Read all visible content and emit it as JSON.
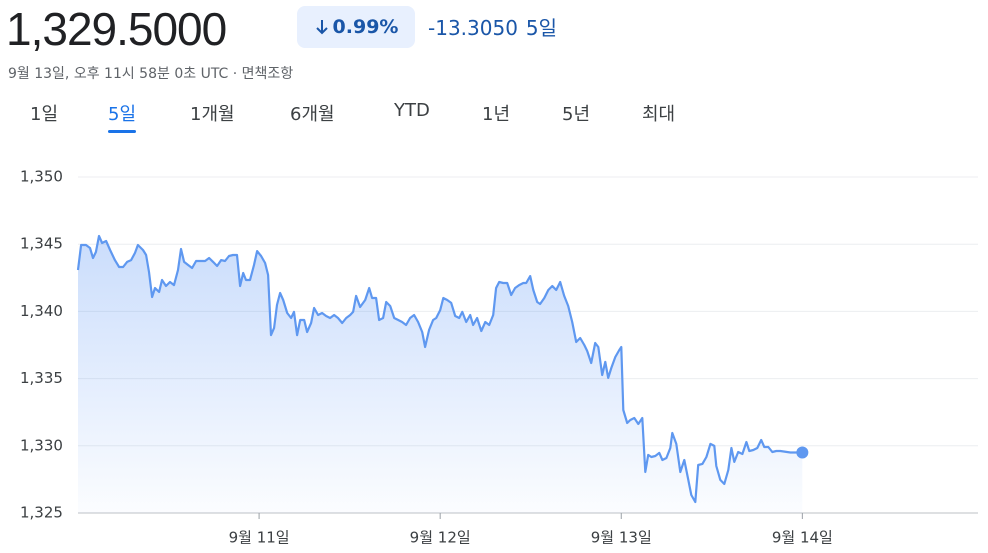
{
  "header": {
    "price": "1,329.5000",
    "change_percent": "0.99%",
    "change": "-13.3050",
    "period": "5일",
    "timestamp": "9월 13일, 오후 11시 58분 0초 UTC · 면책조항"
  },
  "tabs": [
    "1일",
    "5일",
    "1개월",
    "6개월",
    "YTD",
    "1년",
    "5년",
    "최대"
  ],
  "active_tab": 1,
  "chart_data": {
    "type": "line",
    "color": "#5f98f0",
    "grid": true,
    "xlim": [
      10,
      14.97
    ],
    "ylim": [
      1325,
      1350
    ],
    "xticks": [
      {
        "value": 11,
        "label": "9월 11일"
      },
      {
        "value": 12,
        "label": "9월 12일"
      },
      {
        "value": 13,
        "label": "9월 13일"
      },
      {
        "value": 14,
        "label": "9월 14일"
      }
    ],
    "yticks": [
      {
        "value": 1325,
        "label": "1,325"
      },
      {
        "value": 1330,
        "label": "1,330"
      },
      {
        "value": 1335,
        "label": "1,335"
      },
      {
        "value": 1340,
        "label": "1,340"
      },
      {
        "value": 1345,
        "label": "1,345"
      },
      {
        "value": 1350,
        "label": "1,350"
      }
    ],
    "x": [
      10.0,
      10.017,
      10.044,
      10.066,
      10.083,
      10.099,
      10.116,
      10.133,
      10.155,
      10.177,
      10.204,
      10.227,
      10.249,
      10.271,
      10.293,
      10.315,
      10.331,
      10.359,
      10.376,
      10.392,
      10.409,
      10.425,
      10.448,
      10.464,
      10.486,
      10.508,
      10.53,
      10.552,
      10.569,
      10.586,
      10.608,
      10.63,
      10.652,
      10.674,
      10.702,
      10.724,
      10.746,
      10.768,
      10.79,
      10.812,
      10.834,
      10.856,
      10.878,
      10.895,
      10.912,
      10.928,
      10.95,
      10.972,
      10.989,
      11.011,
      11.033,
      11.05,
      11.066,
      11.083,
      11.099,
      11.116,
      11.133,
      11.155,
      11.177,
      11.193,
      11.21,
      11.227,
      11.249,
      11.265,
      11.287,
      11.304,
      11.326,
      11.348,
      11.37,
      11.392,
      11.414,
      11.436,
      11.459,
      11.481,
      11.503,
      11.519,
      11.536,
      11.558,
      11.586,
      11.608,
      11.624,
      11.646,
      11.663,
      11.685,
      11.702,
      11.724,
      11.746,
      11.768,
      11.79,
      11.812,
      11.834,
      11.856,
      11.878,
      11.901,
      11.917,
      11.939,
      11.961,
      11.978,
      12.0,
      12.017,
      12.039,
      12.061,
      12.083,
      12.105,
      12.122,
      12.144,
      12.166,
      12.182,
      12.204,
      12.227,
      12.249,
      12.271,
      12.293,
      12.309,
      12.326,
      12.348,
      12.37,
      12.392,
      12.414,
      12.436,
      12.459,
      12.475,
      12.497,
      12.514,
      12.536,
      12.552,
      12.575,
      12.597,
      12.619,
      12.641,
      12.663,
      12.685,
      12.707,
      12.729,
      12.751,
      12.773,
      12.796,
      12.812,
      12.834,
      12.856,
      12.873,
      12.895,
      12.912,
      12.928,
      12.945,
      12.967,
      12.989,
      13.0,
      13.011,
      13.033,
      13.05,
      13.072,
      13.094,
      13.116,
      13.133,
      13.149,
      13.166,
      13.188,
      13.21,
      13.227,
      13.249,
      13.271,
      13.282,
      13.304,
      13.326,
      13.348,
      13.37,
      13.387,
      13.409,
      13.425,
      13.448,
      13.47,
      13.492,
      13.514,
      13.525,
      13.547,
      13.569,
      13.591,
      13.608,
      13.624,
      13.646,
      13.669,
      13.691,
      13.707,
      13.729,
      13.751,
      13.773,
      13.79,
      13.812,
      13.834,
      13.856,
      13.878,
      13.934,
      14.0
    ],
    "values": [
      1343.08,
      1344.94,
      1344.94,
      1344.72,
      1343.97,
      1344.42,
      1345.61,
      1345.09,
      1345.24,
      1344.57,
      1343.82,
      1343.3,
      1343.3,
      1343.68,
      1343.82,
      1344.35,
      1344.94,
      1344.57,
      1344.2,
      1342.93,
      1341.07,
      1341.74,
      1341.44,
      1342.34,
      1341.89,
      1342.19,
      1341.96,
      1343.08,
      1344.64,
      1343.68,
      1343.45,
      1343.23,
      1343.75,
      1343.75,
      1343.75,
      1343.97,
      1343.68,
      1343.38,
      1343.82,
      1343.75,
      1344.12,
      1344.2,
      1344.2,
      1341.89,
      1342.86,
      1342.34,
      1342.34,
      1343.45,
      1344.49,
      1344.12,
      1343.6,
      1342.71,
      1338.24,
      1338.77,
      1340.48,
      1341.37,
      1340.85,
      1339.88,
      1339.51,
      1339.96,
      1338.24,
      1339.36,
      1339.36,
      1338.47,
      1339.14,
      1340.25,
      1339.73,
      1339.88,
      1339.66,
      1339.51,
      1339.73,
      1339.51,
      1339.14,
      1339.51,
      1339.73,
      1339.96,
      1341.15,
      1340.33,
      1340.85,
      1341.74,
      1341.0,
      1341.0,
      1339.36,
      1339.51,
      1340.7,
      1340.4,
      1339.51,
      1339.36,
      1339.21,
      1338.99,
      1339.51,
      1339.73,
      1339.21,
      1338.47,
      1337.35,
      1338.62,
      1339.36,
      1339.51,
      1340.1,
      1341.0,
      1340.85,
      1340.63,
      1339.66,
      1339.51,
      1339.96,
      1339.21,
      1339.73,
      1338.99,
      1339.51,
      1338.54,
      1339.21,
      1338.99,
      1339.73,
      1341.74,
      1342.19,
      1342.11,
      1342.11,
      1341.22,
      1341.74,
      1341.96,
      1342.11,
      1342.11,
      1342.63,
      1341.59,
      1340.7,
      1340.55,
      1341.0,
      1341.59,
      1341.89,
      1341.59,
      1342.19,
      1341.15,
      1340.4,
      1339.21,
      1337.72,
      1338.02,
      1337.5,
      1337.05,
      1336.16,
      1337.65,
      1337.35,
      1335.27,
      1336.24,
      1335.05,
      1335.79,
      1336.61,
      1337.13,
      1337.35,
      1332.66,
      1331.7,
      1331.92,
      1332.07,
      1331.62,
      1332.07,
      1328.05,
      1329.32,
      1329.17,
      1329.24,
      1329.47,
      1328.94,
      1329.09,
      1329.84,
      1330.95,
      1330.14,
      1328.05,
      1328.94,
      1327.46,
      1326.34,
      1325.82,
      1328.57,
      1328.65,
      1329.17,
      1330.14,
      1329.99,
      1328.5,
      1327.46,
      1327.16,
      1328.2,
      1329.84,
      1328.8,
      1329.54,
      1329.39,
      1330.28,
      1329.61,
      1329.69,
      1329.84,
      1330.43,
      1329.91,
      1329.91,
      1329.54,
      1329.61,
      1329.61,
      1329.5,
      1329.5
    ]
  }
}
